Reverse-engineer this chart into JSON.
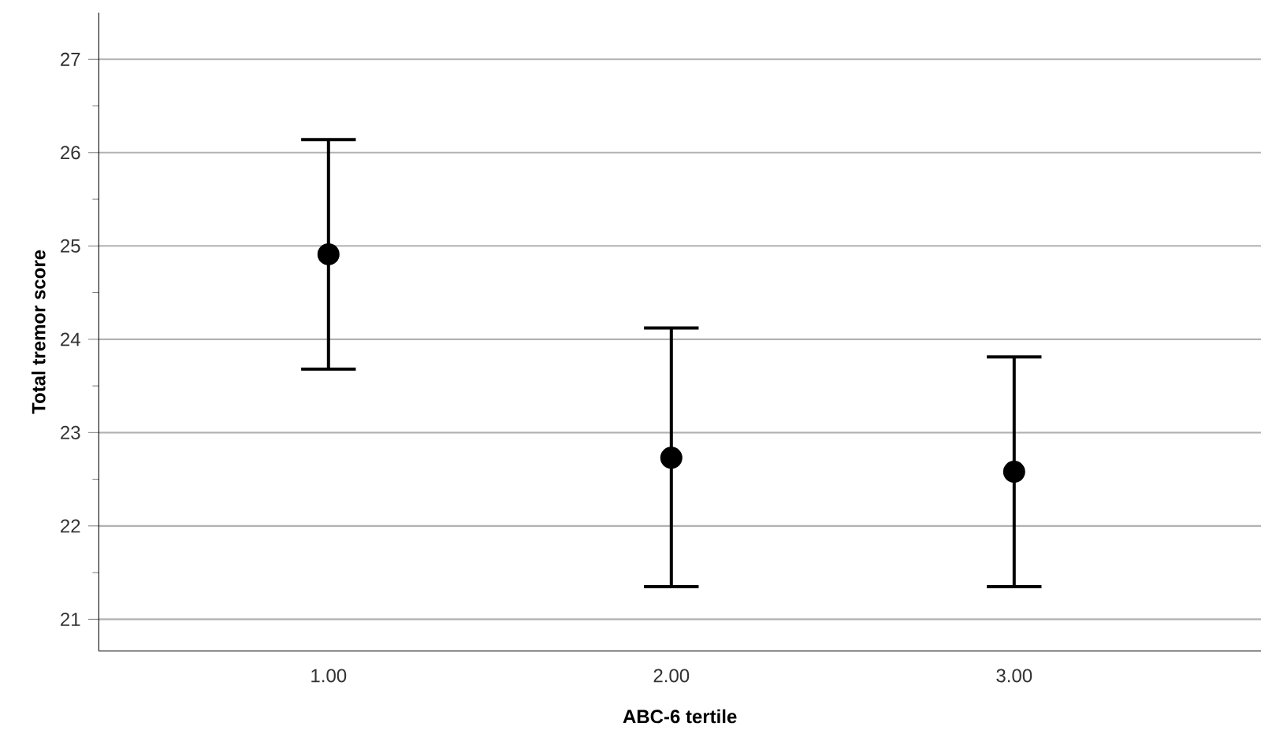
{
  "chart_data": {
    "type": "scatter",
    "xlabel": "ABC-6 tertile",
    "ylabel": "Total tremor score",
    "categories": [
      "1.00",
      "2.00",
      "3.00"
    ],
    "series": [
      {
        "color": "#000000",
        "values": [
          24.91,
          22.73,
          22.58
        ],
        "errors": [
          [
            23.68,
            26.14
          ],
          [
            21.35,
            24.12
          ],
          [
            21.35,
            23.81
          ]
        ]
      }
    ],
    "ylim": [
      20.66,
      27.5
    ],
    "yticks": [
      21,
      {
        "value": 21.5,
        "label": null
      },
      22,
      {
        "value": 22.5,
        "label": null
      },
      23,
      {
        "value": 23.5,
        "label": null
      },
      24,
      {
        "value": 24.5,
        "label": null
      },
      25,
      {
        "value": 25.5,
        "label": null
      },
      26,
      {
        "value": 26.5,
        "label": null
      },
      27
    ],
    "grid": "y",
    "marker": "circle"
  }
}
